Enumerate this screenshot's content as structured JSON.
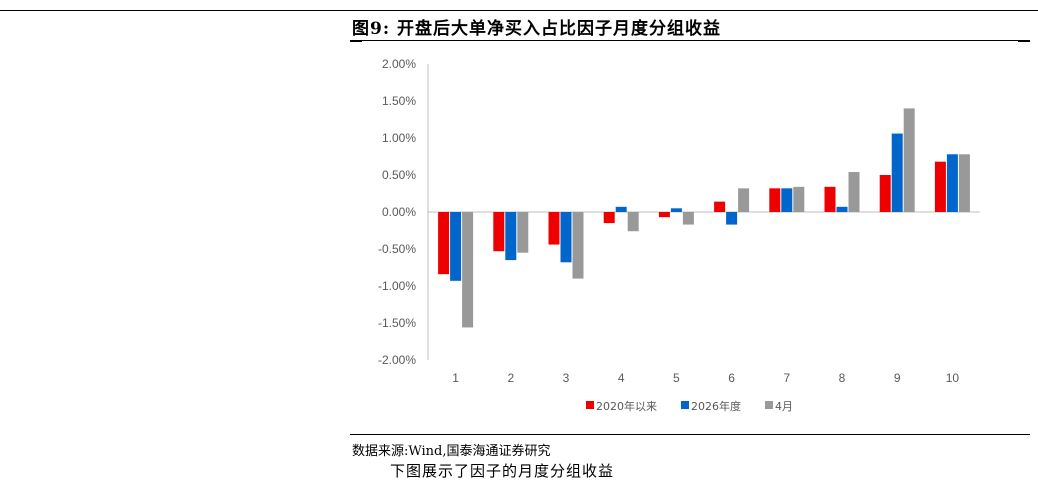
{
  "figure": {
    "title": "图9:  开盘后大单净买入占比因子月度分组收益",
    "source": "数据来源:Wind,国泰海通证券研究",
    "next_line": "下图展示了因子的月度分组收益"
  },
  "colors": {
    "series_2020": "#ee0000",
    "series_2026": "#0066cc",
    "series_apr": "#999999",
    "axis": "#bfbfbf",
    "text": "#595959"
  },
  "chart_data": {
    "type": "bar",
    "categories": [
      "1",
      "2",
      "3",
      "4",
      "5",
      "6",
      "7",
      "8",
      "9",
      "10"
    ],
    "series": [
      {
        "name": "2020年以来",
        "color": "#ee0000",
        "values": [
          -0.84,
          -0.53,
          -0.44,
          -0.15,
          -0.07,
          0.14,
          0.32,
          0.34,
          0.5,
          0.68
        ]
      },
      {
        "name": "2026年度",
        "color": "#0066cc",
        "values": [
          -0.93,
          -0.65,
          -0.68,
          0.07,
          0.05,
          -0.17,
          0.32,
          0.07,
          1.06,
          0.78
        ]
      },
      {
        "name": "4月",
        "color": "#999999",
        "values": [
          -1.56,
          -0.55,
          -0.9,
          -0.26,
          -0.17,
          0.32,
          0.34,
          0.54,
          1.4,
          0.78
        ]
      }
    ],
    "yticks": [
      "2.00%",
      "1.50%",
      "1.00%",
      "0.50%",
      "0.00%",
      "-0.50%",
      "-1.00%",
      "-1.50%",
      "-2.00%"
    ],
    "ylim": [
      -2.0,
      2.0
    ],
    "legend_position": "bottom",
    "grid": false
  }
}
